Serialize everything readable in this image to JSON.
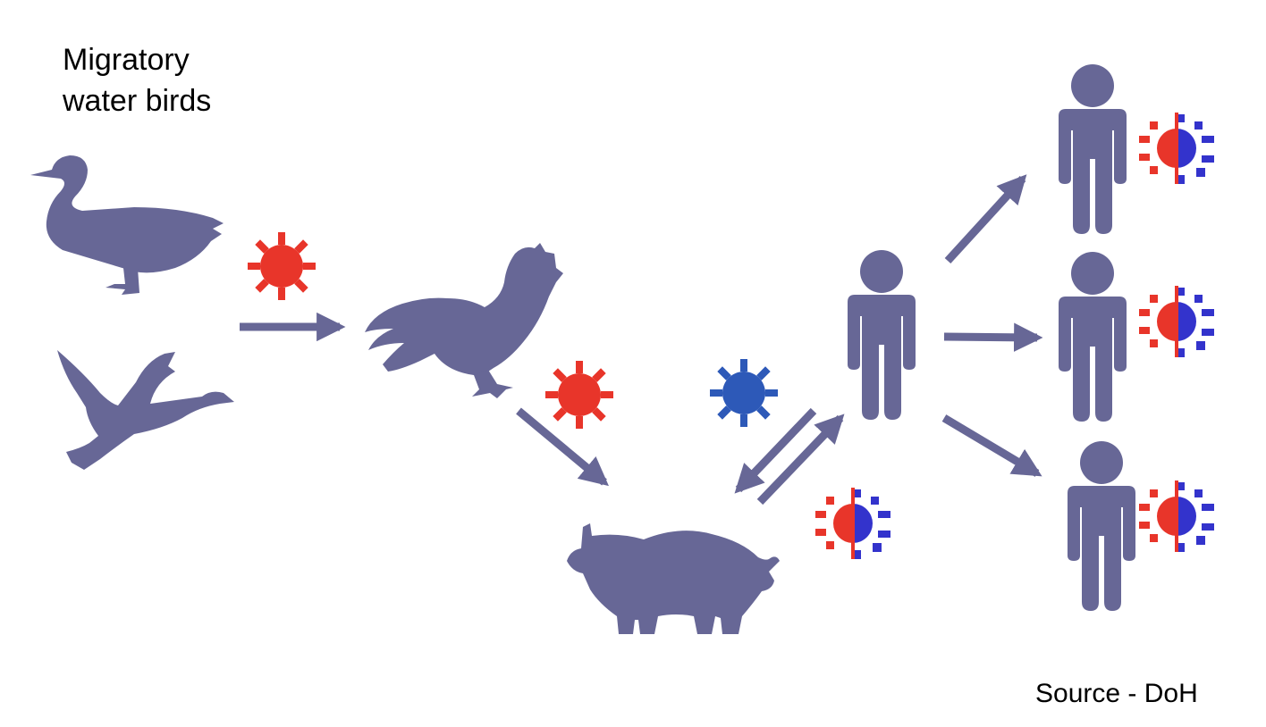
{
  "title": {
    "line1": "Migratory",
    "line2": "water birds"
  },
  "source_label": "Source - DoH",
  "icons": {
    "duck": "duck-icon",
    "flying_goose": "flying-goose-icon",
    "rooster": "rooster-icon",
    "pig": "pig-icon",
    "person": "person-icon",
    "avian_virus": "avian-virus-icon",
    "human_virus": "human-virus-icon",
    "reassortant_virus": "reassortant-virus-icon"
  },
  "colors": {
    "silhouette": "#676796",
    "avian_virus": "#e8352a",
    "human_virus": "#2d59b8",
    "reassortant_blue": "#3333cc"
  }
}
